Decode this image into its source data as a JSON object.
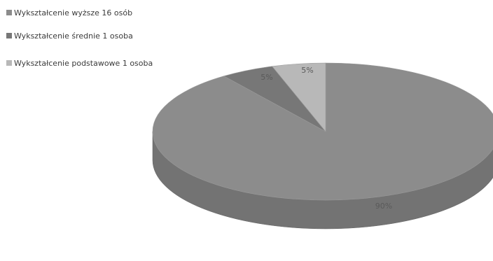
{
  "chart_data": {
    "type": "pie",
    "style": "3d",
    "title": "",
    "legend_position": "top-left",
    "slices": [
      {
        "label": "Wykształcenie wyższe 16 osób",
        "value": 90,
        "percent_label": "90%",
        "color": "#8c8c8c"
      },
      {
        "label": "Wykształcenie średnie 1 osoba",
        "value": 5,
        "percent_label": "5%",
        "color": "#777777"
      },
      {
        "label": "Wykształcenie podstawowe 1 osoba",
        "value": 5,
        "percent_label": "5%",
        "color": "#b8b8b8"
      }
    ]
  }
}
